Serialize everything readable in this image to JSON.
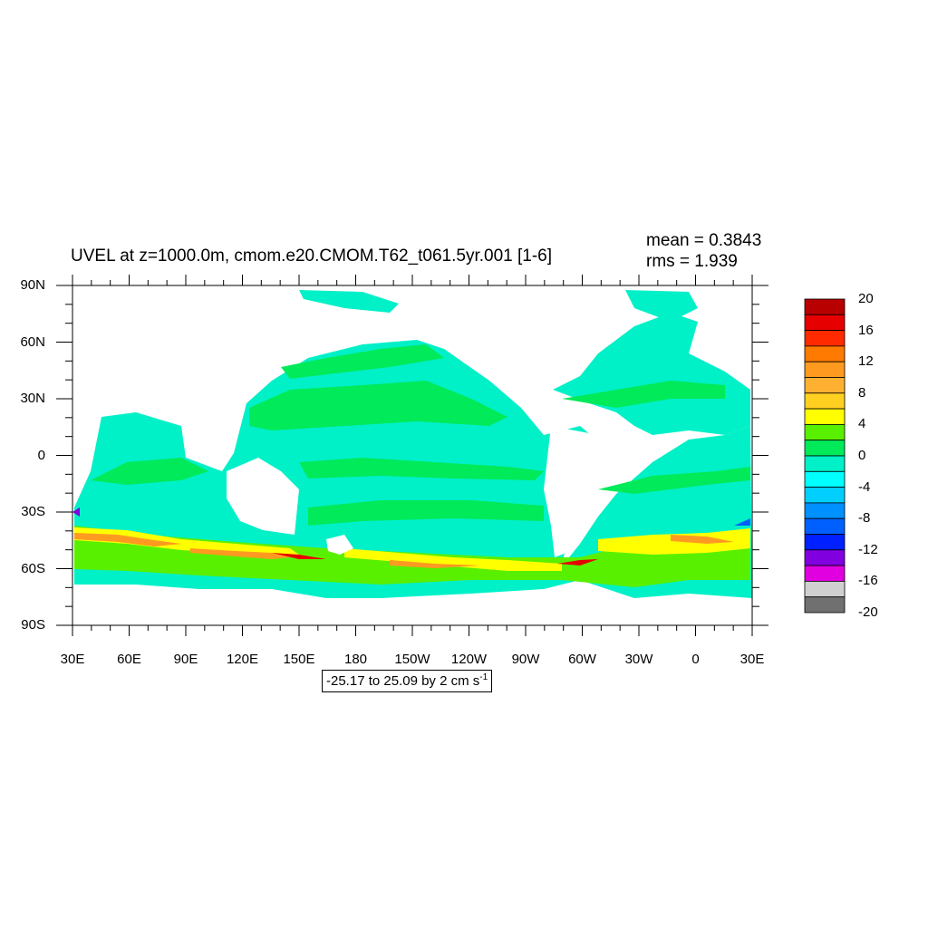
{
  "title": "UVEL at z=1000.0m, cmom.e20.CMOM.T62_t061.5yr.001 [1-6]",
  "stats": {
    "mean": "mean = 0.3843",
    "rms": "rms = 1.939"
  },
  "lat_labels": [
    "90N",
    "60N",
    "30N",
    "0",
    "30S",
    "60S",
    "90S"
  ],
  "lon_labels": [
    "30E",
    "60E",
    "90E",
    "120E",
    "150E",
    "180",
    "150W",
    "120W",
    "90W",
    "60W",
    "30W",
    "0",
    "30E"
  ],
  "colorbar": {
    "labels": [
      "20",
      "16",
      "12",
      "8",
      "4",
      "0",
      "-4",
      "-8",
      "-12",
      "-16",
      "-20"
    ],
    "colors": [
      "#b80000",
      "#e60000",
      "#ff2a00",
      "#ff7a00",
      "#ff9a20",
      "#ffb030",
      "#ffd020",
      "#ffff00",
      "#59f000",
      "#00ea5a",
      "#00f0c8",
      "#00ffff",
      "#00cfff",
      "#0090ff",
      "#0060ff",
      "#0020ff",
      "#8000e0",
      "#e000e0",
      "#d0d0d0",
      "#707070"
    ]
  },
  "range_text": {
    "main": "-25.17 to 25.09 by 2 cm s",
    "sup": "-1"
  },
  "map_colors": {
    "cyan": "#00f0c8",
    "green": "#00ea5a",
    "lgreen": "#59f000",
    "yellow": "#ffff00",
    "orange": "#ff9a20",
    "red": "#e60000",
    "blue": "#0060ff",
    "purple": "#8000e0"
  }
}
